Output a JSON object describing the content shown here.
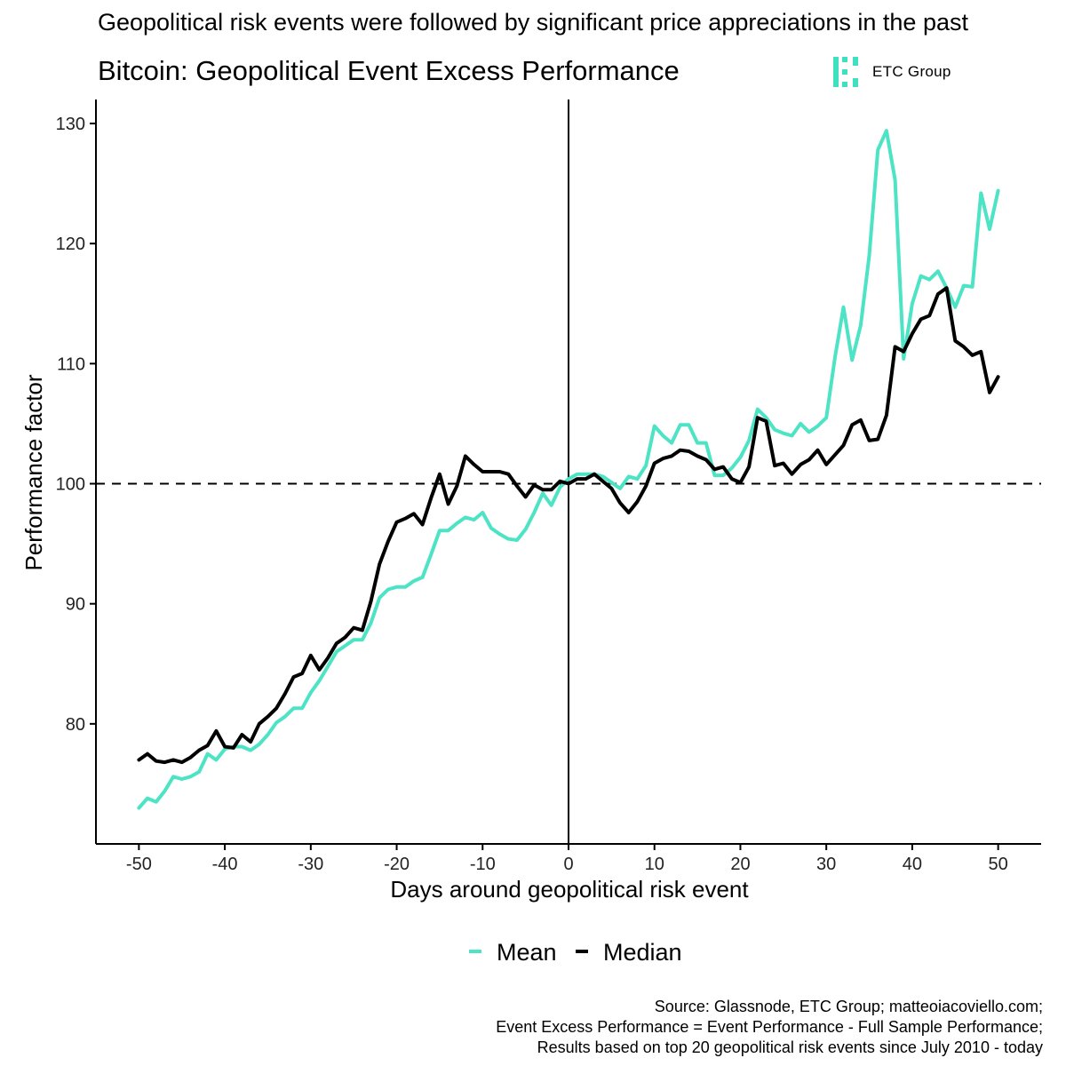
{
  "headline": "Geopolitical risk events were followed by significant price appreciations in the past",
  "logo": {
    "text": "ETC Group",
    "color": "#3ee0c0"
  },
  "source_notes": [
    "Source: Glassnode, ETC Group; matteoiacoviello.com;",
    "Event Excess Performance = Event Performance - Full Sample Performance;",
    "Results based on top 20 geopolitical risk events since July 2010 - today"
  ],
  "chart_data": {
    "type": "line",
    "title": "Bitcoin: Geopolitical Event Excess Performance",
    "xlabel": "Days around geopolitical risk event",
    "ylabel": "Performance factor",
    "xlim": [
      -55,
      55
    ],
    "ylim": [
      70,
      132
    ],
    "x_ticks": [
      -50,
      -40,
      -30,
      -20,
      -10,
      0,
      10,
      20,
      30,
      40,
      50
    ],
    "y_ticks": [
      80,
      90,
      100,
      110,
      120,
      130
    ],
    "reference_lines": {
      "horizontal": 100,
      "vertical": 0
    },
    "grid": false,
    "legend_position": "bottom",
    "x": [
      -50,
      -49,
      -48,
      -47,
      -46,
      -45,
      -44,
      -43,
      -42,
      -41,
      -40,
      -39,
      -38,
      -37,
      -36,
      -35,
      -34,
      -33,
      -32,
      -31,
      -30,
      -29,
      -28,
      -27,
      -26,
      -25,
      -24,
      -23,
      -22,
      -21,
      -20,
      -19,
      -18,
      -17,
      -16,
      -15,
      -14,
      -13,
      -12,
      -11,
      -10,
      -9,
      -8,
      -7,
      -6,
      -5,
      -4,
      -3,
      -2,
      -1,
      0,
      1,
      2,
      3,
      4,
      5,
      6,
      7,
      8,
      9,
      10,
      11,
      12,
      13,
      14,
      15,
      16,
      17,
      18,
      19,
      20,
      21,
      22,
      23,
      24,
      25,
      26,
      27,
      28,
      29,
      30,
      31,
      32,
      33,
      34,
      35,
      36,
      37,
      38,
      39,
      40,
      41,
      42,
      43,
      44,
      45,
      46,
      47,
      48,
      49,
      50
    ],
    "series": [
      {
        "name": "Mean",
        "color": "#4de3c5",
        "values": [
          73.0,
          73.8,
          73.5,
          74.4,
          75.6,
          75.4,
          75.6,
          76.0,
          77.5,
          77.0,
          77.9,
          78.1,
          78.1,
          77.8,
          78.3,
          79.1,
          80.1,
          80.6,
          81.3,
          81.3,
          82.6,
          83.6,
          84.8,
          86.0,
          86.5,
          87.0,
          87.0,
          88.4,
          90.5,
          91.2,
          91.4,
          91.4,
          91.9,
          92.2,
          94.1,
          96.1,
          96.1,
          96.7,
          97.2,
          97.0,
          97.6,
          96.3,
          95.8,
          95.4,
          95.3,
          96.2,
          97.6,
          99.2,
          98.2,
          99.7,
          100.4,
          100.8,
          100.8,
          100.8,
          100.6,
          100.1,
          99.6,
          100.6,
          100.4,
          101.5,
          104.8,
          104.0,
          103.4,
          104.9,
          104.9,
          103.4,
          103.4,
          100.7,
          100.7,
          101.3,
          102.2,
          103.6,
          106.2,
          105.5,
          104.5,
          104.2,
          104.0,
          105.0,
          104.3,
          104.8,
          105.5,
          110.5,
          114.7,
          110.3,
          113.2,
          119.0,
          127.8,
          129.4,
          125.3,
          110.4,
          115.0,
          117.3,
          117.0,
          117.7,
          116.3,
          114.7,
          116.5,
          116.4,
          124.2,
          121.2,
          124.4
        ]
      },
      {
        "name": "Median",
        "color": "#000000",
        "values": [
          77.0,
          77.5,
          76.9,
          76.8,
          77.0,
          76.8,
          77.2,
          77.8,
          78.2,
          79.4,
          78.1,
          78.0,
          79.1,
          78.5,
          80.0,
          80.6,
          81.3,
          82.5,
          83.9,
          84.2,
          85.7,
          84.5,
          85.5,
          86.7,
          87.2,
          88.0,
          87.8,
          90.2,
          93.3,
          95.2,
          96.8,
          97.1,
          97.5,
          96.6,
          98.8,
          100.8,
          98.3,
          99.8,
          102.3,
          101.6,
          101.0,
          101.0,
          101.0,
          100.8,
          99.8,
          98.9,
          99.9,
          99.5,
          99.5,
          100.2,
          100.0,
          100.4,
          100.4,
          100.8,
          100.2,
          99.6,
          98.4,
          97.6,
          98.5,
          99.8,
          101.7,
          102.1,
          102.3,
          102.8,
          102.7,
          102.3,
          102.0,
          101.2,
          101.4,
          100.4,
          100.1,
          101.4,
          105.5,
          105.2,
          101.5,
          101.7,
          100.8,
          101.6,
          102.0,
          102.8,
          101.6,
          102.4,
          103.2,
          104.9,
          105.3,
          103.6,
          103.7,
          105.7,
          111.4,
          111.0,
          112.5,
          113.7,
          114.0,
          115.8,
          116.3,
          111.9,
          111.4,
          110.7,
          111.0,
          107.6,
          108.9
        ]
      }
    ]
  }
}
